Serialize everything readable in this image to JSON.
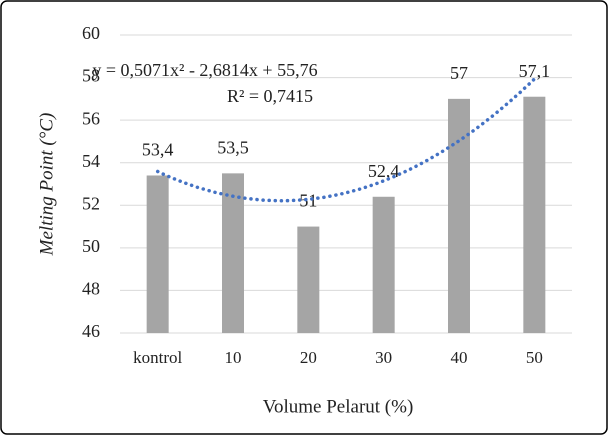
{
  "chart_data": {
    "type": "bar",
    "categories": [
      "kontrol",
      "10",
      "20",
      "30",
      "40",
      "50"
    ],
    "values": [
      53.4,
      53.5,
      51,
      52.4,
      57,
      57.1
    ],
    "value_labels": [
      "53,4",
      "53,5",
      "51",
      "52,4",
      "57",
      "57,1"
    ],
    "color": "#a5a5a5",
    "ylim": [
      46,
      60
    ],
    "yticks": [
      46,
      48,
      50,
      52,
      54,
      56,
      58,
      60
    ],
    "grid": true,
    "y_label": "Melting Point (°C)",
    "x_label": "Volume Pelarut (%)",
    "trendline": {
      "type": "polynomial",
      "order": 2,
      "color": "#4472c4",
      "equation": "y = 0,5071x² - 2,6814x + 55,76",
      "r_squared": "R² = 0,7415"
    }
  }
}
